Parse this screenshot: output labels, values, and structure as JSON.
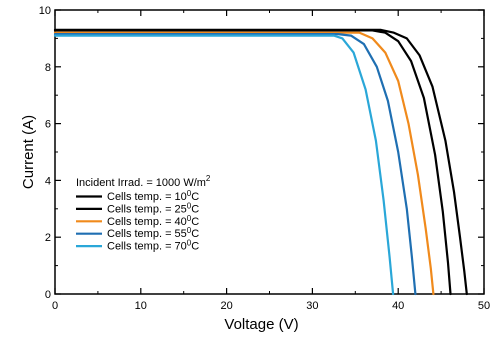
{
  "chart_data": {
    "type": "line",
    "title": "",
    "xlabel": "Voltage (V)",
    "ylabel": "Current (A)",
    "xlim": [
      0,
      50
    ],
    "ylim": [
      0,
      10
    ],
    "x_ticks": [
      0,
      10,
      20,
      30,
      40,
      50
    ],
    "y_ticks": [
      0,
      2,
      4,
      6,
      8,
      10
    ],
    "grid": false,
    "legend_position": "lower-left",
    "legend_title": "Incident Irrad. = 1000 W/m",
    "legend_title_sup": "2",
    "series": [
      {
        "name": "Cells temp. = 10°C",
        "label_prefix": "Cells temp. = 10",
        "label_sup": "0",
        "label_suffix": "C",
        "color": "#000000",
        "x": [
          0,
          10,
          20,
          30,
          36,
          38,
          39.5,
          41,
          42.5,
          44,
          45.5,
          46.5,
          47.2,
          47.7,
          48.0
        ],
        "y": [
          9.3,
          9.3,
          9.3,
          9.3,
          9.3,
          9.3,
          9.2,
          9.0,
          8.4,
          7.3,
          5.4,
          3.6,
          2.0,
          0.8,
          0
        ]
      },
      {
        "name": "Cells temp. = 25°C",
        "label_prefix": "Cells temp. = 25",
        "label_sup": "0",
        "label_suffix": "C",
        "color": "#000000",
        "x": [
          0,
          10,
          20,
          30,
          35,
          37,
          38.5,
          40,
          41.5,
          43,
          44.3,
          45.2,
          45.8,
          46.1
        ],
        "y": [
          9.28,
          9.28,
          9.28,
          9.28,
          9.28,
          9.28,
          9.2,
          8.9,
          8.2,
          6.9,
          4.9,
          2.9,
          1.1,
          0
        ]
      },
      {
        "name": "Cells temp. = 40°C",
        "label_prefix": "Cells temp. = 40",
        "label_sup": "0",
        "label_suffix": "C",
        "color": "#f08a1c",
        "x": [
          0,
          10,
          20,
          30,
          34,
          35.5,
          37,
          38.5,
          40,
          41.2,
          42.3,
          43.2,
          43.8,
          44.1
        ],
        "y": [
          9.2,
          9.2,
          9.2,
          9.2,
          9.2,
          9.2,
          9.0,
          8.5,
          7.5,
          6.0,
          4.2,
          2.3,
          0.9,
          0
        ]
      },
      {
        "name": "Cells temp. = 55°C",
        "label_prefix": "Cells temp. = 55",
        "label_sup": "0",
        "label_suffix": "C",
        "color": "#1f6fb2",
        "x": [
          0,
          10,
          20,
          30,
          33,
          34.5,
          36,
          37.5,
          38.8,
          40,
          41,
          41.6,
          42.0
        ],
        "y": [
          9.15,
          9.15,
          9.15,
          9.15,
          9.15,
          9.1,
          8.8,
          8.0,
          6.8,
          5.0,
          3.0,
          1.3,
          0
        ]
      },
      {
        "name": "Cells temp. = 70°C",
        "label_prefix": "Cells temp. = 70",
        "label_sup": "0",
        "label_suffix": "C",
        "color": "#2aa7d8",
        "x": [
          0,
          10,
          20,
          30,
          32.5,
          33.5,
          34.8,
          36.2,
          37.4,
          38.3,
          39.0,
          39.4
        ],
        "y": [
          9.1,
          9.1,
          9.1,
          9.1,
          9.1,
          9.0,
          8.5,
          7.2,
          5.4,
          3.3,
          1.3,
          0
        ]
      }
    ]
  }
}
